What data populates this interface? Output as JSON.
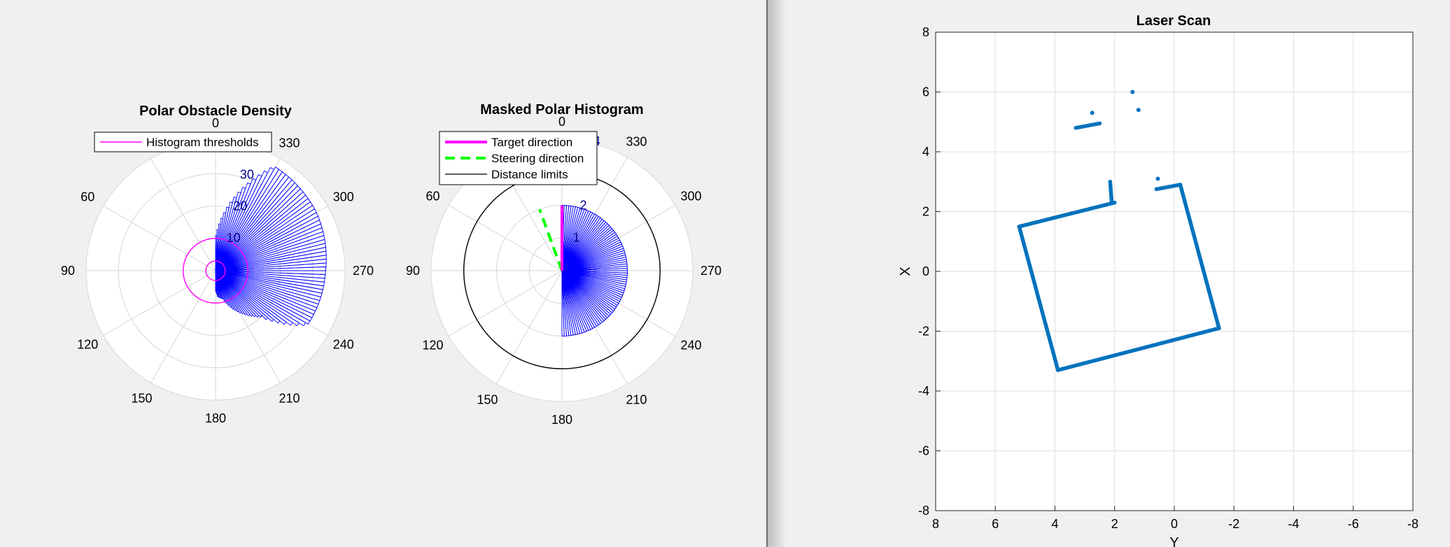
{
  "chart_data": [
    {
      "type": "polar-histogram",
      "title": "Polar Obstacle Density",
      "theta_direction": "counterclockwise",
      "theta_zero": "top",
      "theta_ticks": [
        "0",
        "30",
        "60",
        "90",
        "120",
        "150",
        "180",
        "210",
        "240",
        "270",
        "300",
        "330"
      ],
      "theta_tick_values": [
        0,
        30,
        60,
        90,
        120,
        150,
        180,
        210,
        240,
        270,
        300,
        330
      ],
      "rlim": [
        0,
        40
      ],
      "r_ticks": [
        "10",
        "20",
        "30",
        "40"
      ],
      "r_tick_values": [
        10,
        20,
        30,
        40
      ],
      "legend": {
        "placement": "top-left",
        "entries": [
          "Histogram thresholds"
        ]
      },
      "thresholds": [
        3,
        10
      ],
      "threshold_color": "#ff00ff",
      "bar_color": "#0000ff",
      "bin_width_deg": 2,
      "density_profile": [
        {
          "angle": 0,
          "value": 10
        },
        {
          "angle": 330,
          "value": 37
        },
        {
          "angle": 300,
          "value": 36
        },
        {
          "angle": 270,
          "value": 34
        },
        {
          "angle": 240,
          "value": 33
        },
        {
          "angle": 225,
          "value": 20
        },
        {
          "angle": 205,
          "value": 13
        },
        {
          "angle": 195,
          "value": 9
        },
        {
          "angle": 185,
          "value": 8
        },
        {
          "angle": 180,
          "value": 6
        }
      ]
    },
    {
      "type": "polar-histogram",
      "title": "Masked Polar Histogram",
      "theta_direction": "counterclockwise",
      "theta_zero": "top",
      "theta_ticks": [
        "0",
        "30",
        "60",
        "90",
        "120",
        "150",
        "180",
        "210",
        "240",
        "270",
        "300",
        "330"
      ],
      "theta_tick_values": [
        0,
        30,
        60,
        90,
        120,
        150,
        180,
        210,
        240,
        270,
        300,
        330
      ],
      "rlim": [
        0,
        4
      ],
      "r_ticks": [
        "1",
        "2",
        "3",
        "4"
      ],
      "r_tick_values": [
        1,
        2,
        3,
        4
      ],
      "legend": {
        "placement": "top-left",
        "entries": [
          "Target direction",
          "Steering direction",
          "Distance limits"
        ]
      },
      "target_direction_deg": 0,
      "target_length": 2,
      "steering_direction_deg": 20,
      "steering_length": 2,
      "distance_limit": 3,
      "mask_value": 2,
      "mask_range_deg": [
        180,
        360
      ],
      "target_color": "#ff00ff",
      "steering_color": "#00ff00",
      "limit_color": "#000000",
      "bar_color": "#0000ff"
    },
    {
      "type": "scatter",
      "title": "Laser Scan",
      "xlabel": "Y",
      "ylabel": "X",
      "xlim": [
        8,
        -8
      ],
      "ylim": [
        -8,
        8
      ],
      "x_ticks": [
        "8",
        "6",
        "4",
        "2",
        "0",
        "-2",
        "-4",
        "-6",
        "-8"
      ],
      "x_tick_values": [
        8,
        6,
        4,
        2,
        0,
        -2,
        -4,
        -6,
        -8
      ],
      "y_ticks": [
        "8",
        "6",
        "4",
        "2",
        "0",
        "-2",
        "-4",
        "-6",
        "-8"
      ],
      "y_tick_values": [
        8,
        6,
        4,
        2,
        0,
        -2,
        -4,
        -6,
        -8
      ],
      "grid": true,
      "marker_color": "#0072bd",
      "segments": [
        {
          "from": [
            5.2,
            1.5
          ],
          "to": [
            2.0,
            2.3
          ]
        },
        {
          "from": [
            5.2,
            1.5
          ],
          "to": [
            3.9,
            -3.3
          ]
        },
        {
          "from": [
            3.9,
            -3.3
          ],
          "to": [
            -1.5,
            -1.9
          ]
        },
        {
          "from": [
            -1.5,
            -1.9
          ],
          "to": [
            -0.2,
            2.9
          ]
        },
        {
          "from": [
            -0.2,
            2.9
          ],
          "to": [
            0.6,
            2.75
          ]
        },
        {
          "from": [
            2.1,
            2.35
          ],
          "to": [
            2.15,
            3.0
          ]
        },
        {
          "from": [
            3.3,
            4.8
          ],
          "to": [
            2.5,
            4.95
          ]
        }
      ],
      "points": [
        [
          2.75,
          5.3
        ],
        [
          1.4,
          6.0
        ],
        [
          1.2,
          5.4
        ],
        [
          0.55,
          3.1
        ]
      ]
    }
  ]
}
